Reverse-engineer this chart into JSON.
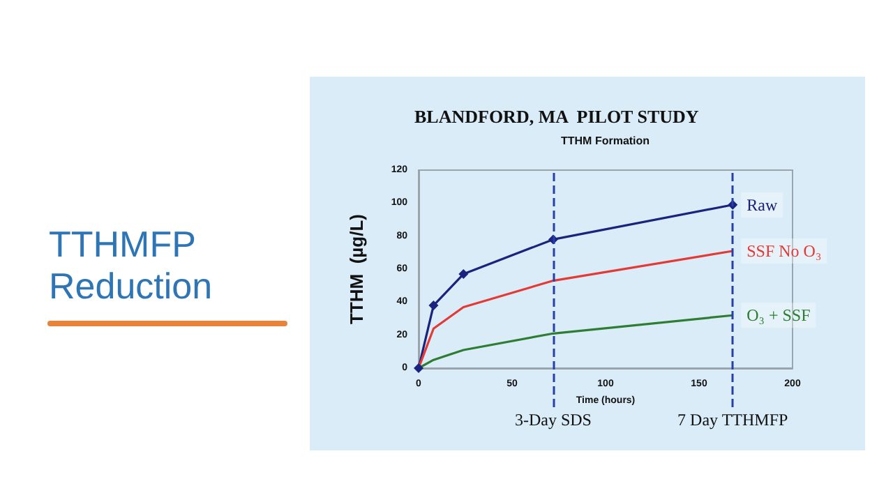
{
  "chart_data": {
    "type": "line",
    "title": "BLANDFORD, MA  PILOT STUDY",
    "subtitle": "TTHM Formation",
    "xlabel": "Time (hours)",
    "ylabel": "TTHM  (µg/L)",
    "annotations": [
      "TTHMFP\nReduction"
    ],
    "x": [
      0,
      8,
      24,
      72,
      168
    ],
    "series": [
      {
        "name": "Raw",
        "color": "#1a237e",
        "values": [
          0,
          38,
          57,
          78,
          99
        ],
        "marker": "diamond"
      },
      {
        "name": "SSF No O₃",
        "color": "#e53935",
        "values": [
          0,
          24,
          37,
          53,
          71
        ],
        "marker": "none"
      },
      {
        "name": "O₃ + SSF",
        "color": "#2e7d32",
        "values": [
          0,
          5,
          11,
          21,
          32
        ],
        "marker": "none"
      }
    ],
    "xlim": [
      0,
      200
    ],
    "xticks": [
      0,
      50,
      100,
      150,
      200
    ],
    "ylim": [
      0,
      120
    ],
    "yticks": [
      0,
      20,
      40,
      60,
      80,
      100,
      120
    ],
    "ref_lines": [
      {
        "axis": "x",
        "value": 72,
        "label": "3-Day SDS",
        "color": "#2a3ea8",
        "line_style": "dashed"
      },
      {
        "axis": "x",
        "value": 168,
        "label": "7 Day TTHMFP",
        "color": "#2a3ea8",
        "line_style": "dashed"
      }
    ],
    "grid": false,
    "legend": false,
    "line_style": "solid"
  }
}
